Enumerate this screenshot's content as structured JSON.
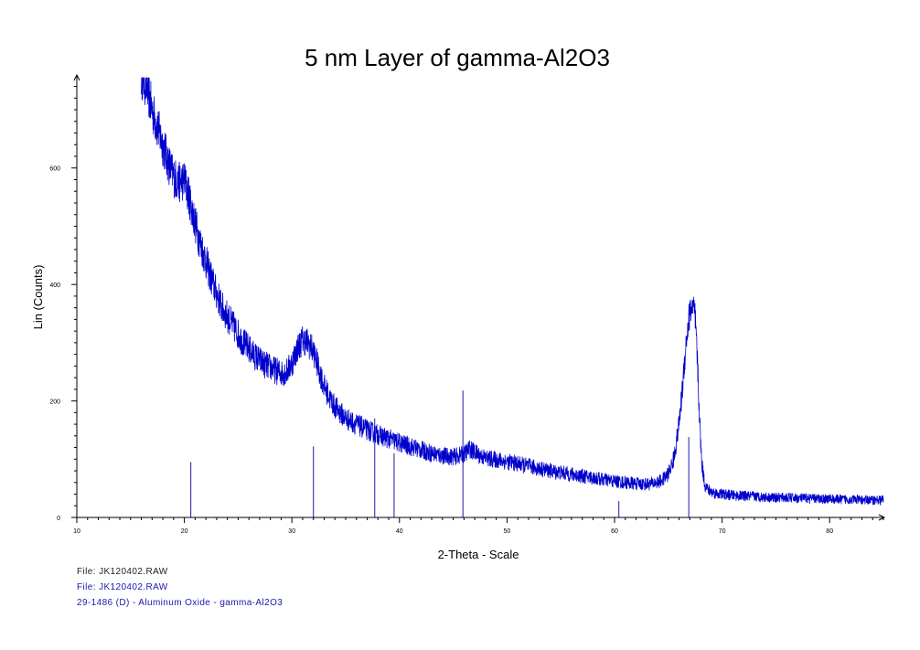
{
  "chart_data": {
    "type": "line",
    "title": "5 nm Layer of gamma-Al2O3",
    "xlabel": "2-Theta - Scale",
    "ylabel": "Lin (Counts)",
    "xlim": [
      10,
      85
    ],
    "ylim": [
      0,
      755
    ],
    "x_ticks": [
      {
        "value": 10,
        "label": "10"
      },
      {
        "value": 20,
        "label": "20"
      },
      {
        "value": 30,
        "label": "30"
      },
      {
        "value": 40,
        "label": "40"
      },
      {
        "value": 50,
        "label": "50"
      },
      {
        "value": 60,
        "label": "60"
      },
      {
        "value": 70,
        "label": "70"
      },
      {
        "value": 80,
        "label": "80"
      }
    ],
    "y_ticks": [
      {
        "value": 0,
        "label": "0"
      },
      {
        "value": 200,
        "label": "200"
      },
      {
        "value": 400,
        "label": "400"
      },
      {
        "value": 600,
        "label": "600"
      }
    ],
    "series": [
      {
        "color": "#0000cc",
        "x": [
          16.0,
          16.5,
          17.0,
          17.5,
          18.0,
          18.5,
          19.0,
          19.5,
          20.0,
          20.5,
          21.0,
          21.5,
          22.0,
          22.5,
          23.0,
          23.5,
          24.0,
          24.5,
          25.0,
          25.5,
          26.0,
          26.5,
          27.0,
          27.5,
          28.0,
          28.5,
          29.0,
          29.5,
          30.0,
          30.5,
          31.0,
          31.5,
          32.0,
          32.5,
          33.0,
          33.5,
          34.0,
          34.5,
          35.0,
          36.0,
          37.0,
          38.0,
          39.0,
          40.0,
          41.0,
          42.0,
          43.0,
          44.0,
          45.0,
          46.0,
          46.5,
          47.0,
          47.5,
          48.0,
          49.0,
          50.0,
          51.0,
          52.0,
          53.0,
          54.0,
          55.0,
          56.0,
          57.0,
          58.0,
          59.0,
          60.0,
          61.0,
          62.0,
          63.0,
          64.0,
          64.5,
          65.0,
          65.5,
          66.0,
          66.3,
          66.6,
          66.9,
          67.1,
          67.3,
          67.5,
          67.7,
          67.9,
          68.1,
          68.4,
          68.7,
          69.0,
          69.5,
          70.0,
          71.0,
          72.0,
          73.0,
          74.0,
          75.0,
          76.0,
          77.0,
          78.0,
          79.0,
          80.0,
          81.0,
          82.0,
          83.0,
          84.0,
          85.0
        ],
        "y": [
          760,
          740,
          700,
          670,
          640,
          610,
          585,
          575,
          580,
          545,
          505,
          470,
          440,
          410,
          385,
          360,
          345,
          330,
          315,
          300,
          290,
          278,
          270,
          262,
          258,
          252,
          248,
          250,
          265,
          290,
          305,
          300,
          285,
          255,
          225,
          205,
          190,
          180,
          170,
          160,
          150,
          142,
          135,
          128,
          122,
          116,
          110,
          106,
          104,
          108,
          118,
          112,
          106,
          102,
          99,
          96,
          92,
          88,
          84,
          80,
          77,
          74,
          71,
          68,
          65,
          62,
          60,
          58,
          57,
          60,
          65,
          75,
          100,
          160,
          220,
          290,
          340,
          360,
          362,
          340,
          270,
          170,
          95,
          55,
          48,
          44,
          41,
          40,
          38,
          37,
          36,
          35,
          34,
          34,
          33,
          33,
          32,
          32,
          31,
          31,
          30,
          30,
          30
        ]
      }
    ],
    "reference_lines": {
      "color": "#1a1aaa",
      "x": [
        20.6,
        32.0,
        37.7,
        39.5,
        45.9,
        60.4,
        66.9
      ],
      "y": [
        95,
        122,
        170,
        110,
        218,
        28,
        138
      ]
    }
  },
  "footer": {
    "file1": "File: JK120402.RAW",
    "file2": "File: JK120402.RAW",
    "reference": "29-1486 (D) - Aluminum Oxide - gamma-Al2O3"
  },
  "colors": {
    "file1": "#222222",
    "file2": "#1a1aaa",
    "reference": "#1a1aaa"
  }
}
